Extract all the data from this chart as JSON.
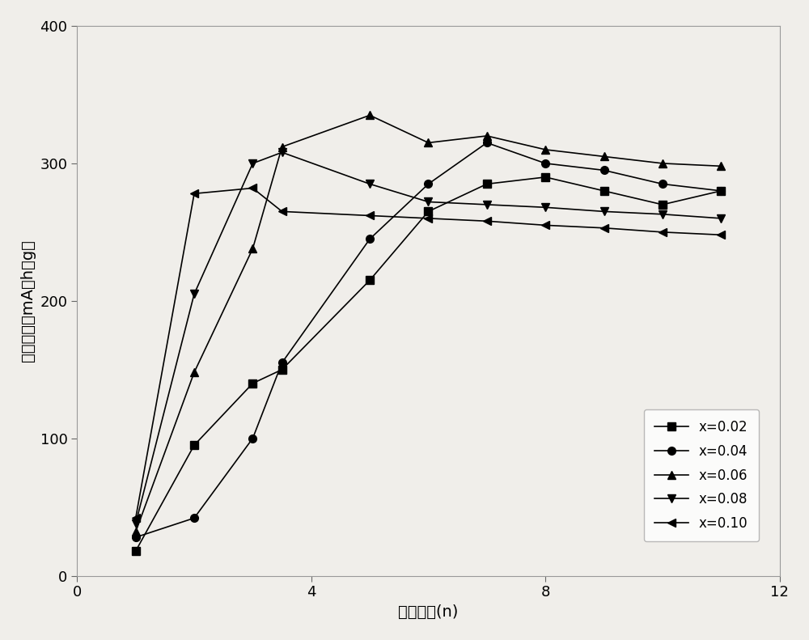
{
  "title": "",
  "xlabel": "循环次数(n)",
  "ylabel": "放电容量（mA．h／g）",
  "xlim": [
    0,
    12
  ],
  "ylim": [
    0,
    400
  ],
  "xticks": [
    0,
    4,
    8,
    12
  ],
  "yticks": [
    0,
    100,
    200,
    300,
    400
  ],
  "series": [
    {
      "label": "x=0.02",
      "x": [
        1,
        2,
        3,
        3.5,
        5,
        6,
        7,
        8,
        9,
        10,
        11
      ],
      "y": [
        18,
        95,
        140,
        150,
        215,
        265,
        285,
        290,
        280,
        270,
        280
      ],
      "marker": "s",
      "color": "#000000"
    },
    {
      "label": "x=0.04",
      "x": [
        1,
        2,
        3,
        3.5,
        5,
        6,
        7,
        8,
        9,
        10,
        11
      ],
      "y": [
        28,
        42,
        100,
        155,
        245,
        285,
        315,
        300,
        295,
        285,
        280
      ],
      "marker": "o",
      "color": "#000000"
    },
    {
      "label": "x=0.06",
      "x": [
        1,
        2,
        3,
        3.5,
        5,
        6,
        7,
        8,
        9,
        10,
        11
      ],
      "y": [
        32,
        148,
        238,
        312,
        335,
        315,
        320,
        310,
        305,
        300,
        298
      ],
      "marker": "^",
      "color": "#000000"
    },
    {
      "label": "x=0.08",
      "x": [
        1,
        2,
        3,
        3.5,
        5,
        6,
        7,
        8,
        9,
        10,
        11
      ],
      "y": [
        38,
        205,
        300,
        308,
        285,
        272,
        270,
        268,
        265,
        263,
        260
      ],
      "marker": "v",
      "color": "#000000"
    },
    {
      "label": "x=0.10",
      "x": [
        1,
        2,
        3,
        3.5,
        5,
        6,
        7,
        8,
        9,
        10,
        11
      ],
      "y": [
        42,
        278,
        282,
        265,
        262,
        260,
        258,
        255,
        253,
        250,
        248
      ],
      "marker": "<",
      "color": "#000000"
    }
  ],
  "background_color": "#f0eeea",
  "legend_loc": "lower right",
  "line_width": 1.2,
  "marker_size": 7
}
